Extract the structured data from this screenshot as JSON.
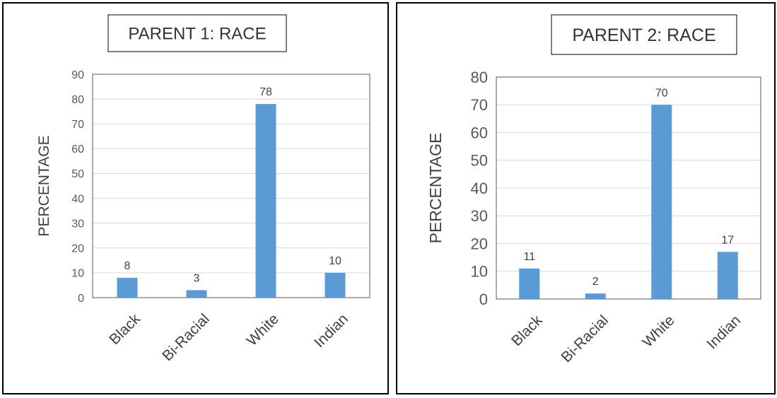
{
  "chart_data": [
    {
      "type": "bar",
      "title": "PARENT 1: RACE",
      "xlabel": "",
      "ylabel": "PERCENTAGE",
      "categories": [
        "Black",
        "Bi-Racial",
        "White",
        "Indian"
      ],
      "values": [
        8,
        3,
        78,
        10
      ],
      "ylim": [
        0,
        90
      ],
      "yticks": [
        0,
        10,
        20,
        30,
        40,
        50,
        60,
        70,
        80,
        90
      ],
      "grid": true,
      "bar_color": "#5b9bd5"
    },
    {
      "type": "bar",
      "title": "PARENT 2: RACE",
      "xlabel": "",
      "ylabel": "PERCENTAGE",
      "categories": [
        "Black",
        "Bi-Racial",
        "White",
        "Indian"
      ],
      "values": [
        11,
        2,
        70,
        17
      ],
      "ylim": [
        0,
        80
      ],
      "yticks": [
        0,
        10,
        20,
        30,
        40,
        50,
        60,
        70,
        80
      ],
      "grid": true,
      "bar_color": "#5b9bd5"
    }
  ]
}
